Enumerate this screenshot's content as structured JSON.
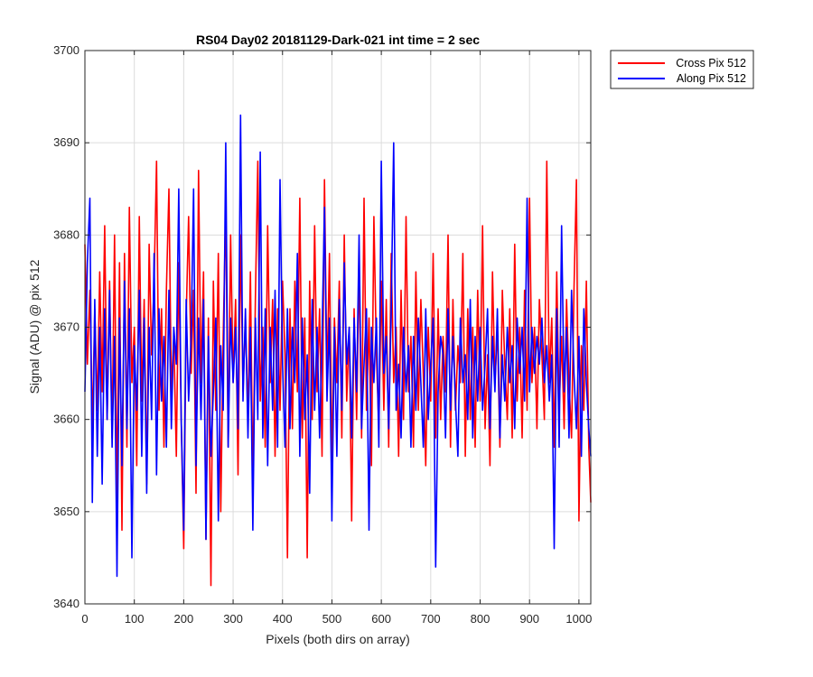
{
  "chart_data": {
    "type": "line",
    "title": "RS04 Day02 20181129-Dark-021 int time = 2 sec",
    "xlabel": "Pixels (both dirs on array)",
    "ylabel": "Signal (ADU) @ pix 512",
    "xlim": [
      0,
      1024
    ],
    "ylim": [
      3640,
      3700
    ],
    "xticks": [
      0,
      100,
      200,
      300,
      400,
      500,
      600,
      700,
      800,
      900,
      1000
    ],
    "yticks": [
      3640,
      3650,
      3660,
      3670,
      3680,
      3690,
      3700
    ],
    "xtick_labels": [
      "0",
      "100",
      "200",
      "300",
      "400",
      "500",
      "600",
      "700",
      "800",
      "900",
      "1000"
    ],
    "ytick_labels": [
      "3640",
      "3650",
      "3660",
      "3670",
      "3680",
      "3690",
      "3700"
    ],
    "grid": true,
    "legend_position": "outside-top-right",
    "series": [
      {
        "name": "Cross Pix 512",
        "color": "#ff0000",
        "x": [
          0,
          5,
          10,
          15,
          20,
          25,
          30,
          35,
          40,
          45,
          50,
          55,
          60,
          65,
          70,
          75,
          80,
          85,
          90,
          95,
          100,
          105,
          110,
          115,
          120,
          125,
          130,
          135,
          140,
          145,
          150,
          155,
          160,
          165,
          170,
          175,
          180,
          185,
          190,
          195,
          200,
          205,
          210,
          215,
          220,
          225,
          230,
          235,
          240,
          245,
          250,
          255,
          260,
          265,
          270,
          275,
          280,
          285,
          290,
          295,
          300,
          305,
          310,
          315,
          320,
          325,
          330,
          335,
          340,
          345,
          350,
          355,
          360,
          365,
          370,
          375,
          380,
          385,
          390,
          395,
          400,
          405,
          410,
          415,
          420,
          425,
          430,
          435,
          440,
          445,
          450,
          455,
          460,
          465,
          470,
          475,
          480,
          485,
          490,
          495,
          500,
          505,
          510,
          515,
          520,
          525,
          530,
          535,
          540,
          545,
          550,
          555,
          560,
          565,
          570,
          575,
          580,
          585,
          590,
          595,
          600,
          605,
          610,
          615,
          620,
          625,
          630,
          635,
          640,
          645,
          650,
          655,
          660,
          665,
          670,
          675,
          680,
          685,
          690,
          695,
          700,
          705,
          710,
          715,
          720,
          725,
          730,
          735,
          740,
          745,
          750,
          755,
          760,
          765,
          770,
          775,
          780,
          785,
          790,
          795,
          800,
          805,
          810,
          815,
          820,
          825,
          830,
          835,
          840,
          845,
          850,
          855,
          860,
          865,
          870,
          875,
          880,
          885,
          890,
          895,
          900,
          905,
          910,
          915,
          920,
          925,
          930,
          935,
          940,
          945,
          950,
          955,
          960,
          965,
          970,
          975,
          980,
          985,
          990,
          995,
          1000,
          1005,
          1010,
          1015,
          1020,
          1024
        ],
        "y": [
          3679,
          3666,
          3674,
          3659,
          3672,
          3661,
          3676,
          3663,
          3681,
          3660,
          3675,
          3658,
          3680,
          3651,
          3677,
          3648,
          3678,
          3657,
          3683,
          3664,
          3670,
          3655,
          3682,
          3662,
          3673,
          3653,
          3679,
          3667,
          3675,
          3688,
          3661,
          3672,
          3657,
          3674,
          3685,
          3663,
          3669,
          3656,
          3677,
          3660,
          3646,
          3671,
          3682,
          3665,
          3674,
          3652,
          3687,
          3664,
          3676,
          3647,
          3671,
          3642,
          3675,
          3661,
          3678,
          3650,
          3669,
          3683,
          3657,
          3680,
          3664,
          3673,
          3654,
          3680,
          3663,
          3671,
          3660,
          3676,
          3653,
          3673,
          3688,
          3662,
          3670,
          3657,
          3681,
          3664,
          3673,
          3656,
          3672,
          3661,
          3675,
          3667,
          3645,
          3672,
          3659,
          3675,
          3663,
          3684,
          3658,
          3671,
          3645,
          3675,
          3660,
          3681,
          3663,
          3672,
          3656,
          3686,
          3664,
          3678,
          3655,
          3671,
          3664,
          3675,
          3658,
          3680,
          3662,
          3670,
          3649,
          3672,
          3660,
          3677,
          3658,
          3684,
          3661,
          3671,
          3655,
          3682,
          3667,
          3659,
          3675,
          3661,
          3673,
          3657,
          3678,
          3664,
          3670,
          3656,
          3674,
          3660,
          3682,
          3663,
          3669,
          3657,
          3676,
          3661,
          3673,
          3665,
          3655,
          3670,
          3662,
          3678,
          3658,
          3672,
          3660,
          3669,
          3663,
          3680,
          3657,
          3673,
          3661,
          3668,
          3664,
          3678,
          3656,
          3672,
          3660,
          3670,
          3657,
          3674,
          3662,
          3681,
          3659,
          3667,
          3655,
          3676,
          3664,
          3670,
          3657,
          3674,
          3666,
          3660,
          3672,
          3658,
          3679,
          3662,
          3670,
          3658,
          3674,
          3661,
          3684,
          3664,
          3670,
          3659,
          3673,
          3667,
          3660,
          3688,
          3664,
          3671,
          3657,
          3676,
          3661,
          3669,
          3659,
          3673,
          3664,
          3658,
          3674,
          3686,
          3649,
          3668,
          3661,
          3675,
          3657,
          3651
        ]
      },
      {
        "name": "Along Pix 512",
        "color": "#0000ff",
        "x": [
          0,
          5,
          10,
          15,
          20,
          25,
          30,
          35,
          40,
          45,
          50,
          55,
          60,
          65,
          70,
          75,
          80,
          85,
          90,
          95,
          100,
          105,
          110,
          115,
          120,
          125,
          130,
          135,
          140,
          145,
          150,
          155,
          160,
          165,
          170,
          175,
          180,
          185,
          190,
          195,
          200,
          205,
          210,
          215,
          220,
          225,
          230,
          235,
          240,
          245,
          250,
          255,
          260,
          265,
          270,
          275,
          280,
          285,
          290,
          295,
          300,
          305,
          310,
          315,
          320,
          325,
          330,
          335,
          340,
          345,
          350,
          355,
          360,
          365,
          370,
          375,
          380,
          385,
          390,
          395,
          400,
          405,
          410,
          415,
          420,
          425,
          430,
          435,
          440,
          445,
          450,
          455,
          460,
          465,
          470,
          475,
          480,
          485,
          490,
          495,
          500,
          505,
          510,
          515,
          520,
          525,
          530,
          535,
          540,
          545,
          550,
          555,
          560,
          565,
          570,
          575,
          580,
          585,
          590,
          595,
          600,
          605,
          610,
          615,
          620,
          625,
          630,
          635,
          640,
          645,
          650,
          655,
          660,
          665,
          670,
          675,
          680,
          685,
          690,
          695,
          700,
          705,
          710,
          715,
          720,
          725,
          730,
          735,
          740,
          745,
          750,
          755,
          760,
          765,
          770,
          775,
          780,
          785,
          790,
          795,
          800,
          805,
          810,
          815,
          820,
          825,
          830,
          835,
          840,
          845,
          850,
          855,
          860,
          865,
          870,
          875,
          880,
          885,
          890,
          895,
          900,
          905,
          910,
          915,
          920,
          925,
          930,
          935,
          940,
          945,
          950,
          955,
          960,
          965,
          970,
          975,
          980,
          985,
          990,
          995,
          1000,
          1005,
          1010,
          1015,
          1020,
          1024
        ],
        "y": [
          3663,
          3677,
          3684,
          3651,
          3673,
          3656,
          3670,
          3653,
          3672,
          3660,
          3674,
          3657,
          3669,
          3643,
          3671,
          3655,
          3675,
          3659,
          3672,
          3645,
          3668,
          3661,
          3674,
          3656,
          3671,
          3652,
          3670,
          3660,
          3678,
          3654,
          3672,
          3662,
          3669,
          3657,
          3674,
          3659,
          3670,
          3666,
          3685,
          3660,
          3648,
          3673,
          3662,
          3669,
          3685,
          3655,
          3671,
          3660,
          3673,
          3647,
          3669,
          3656,
          3663,
          3671,
          3649,
          3668,
          3661,
          3690,
          3657,
          3671,
          3664,
          3670,
          3659,
          3693,
          3662,
          3672,
          3658,
          3670,
          3648,
          3671,
          3660,
          3689,
          3658,
          3672,
          3655,
          3670,
          3661,
          3674,
          3657,
          3686,
          3666,
          3657,
          3672,
          3659,
          3670,
          3664,
          3678,
          3656,
          3671,
          3660,
          3667,
          3652,
          3673,
          3661,
          3670,
          3658,
          3669,
          3683,
          3662,
          3671,
          3649,
          3670,
          3656,
          3673,
          3661,
          3677,
          3666,
          3670,
          3658,
          3671,
          3663,
          3680,
          3659,
          3666,
          3672,
          3648,
          3670,
          3664,
          3671,
          3657,
          3688,
          3665,
          3669,
          3659,
          3672,
          3690,
          3661,
          3666,
          3658,
          3670,
          3663,
          3668,
          3657,
          3669,
          3661,
          3671,
          3664,
          3657,
          3672,
          3660,
          3666,
          3671,
          3644,
          3663,
          3669,
          3667,
          3658,
          3672,
          3661,
          3669,
          3662,
          3656,
          3671,
          3664,
          3667,
          3660,
          3673,
          3658,
          3669,
          3662,
          3670,
          3661,
          3666,
          3672,
          3659,
          3669,
          3663,
          3672,
          3658,
          3667,
          3662,
          3670,
          3664,
          3668,
          3659,
          3671,
          3665,
          3670,
          3662,
          3684,
          3663,
          3670,
          3665,
          3669,
          3666,
          3671,
          3664,
          3668,
          3662,
          3667,
          3646,
          3672,
          3657,
          3681,
          3663,
          3670,
          3658,
          3674,
          3665,
          3659,
          3669,
          3656,
          3672,
          3664,
          3659,
          3656
        ]
      }
    ]
  }
}
